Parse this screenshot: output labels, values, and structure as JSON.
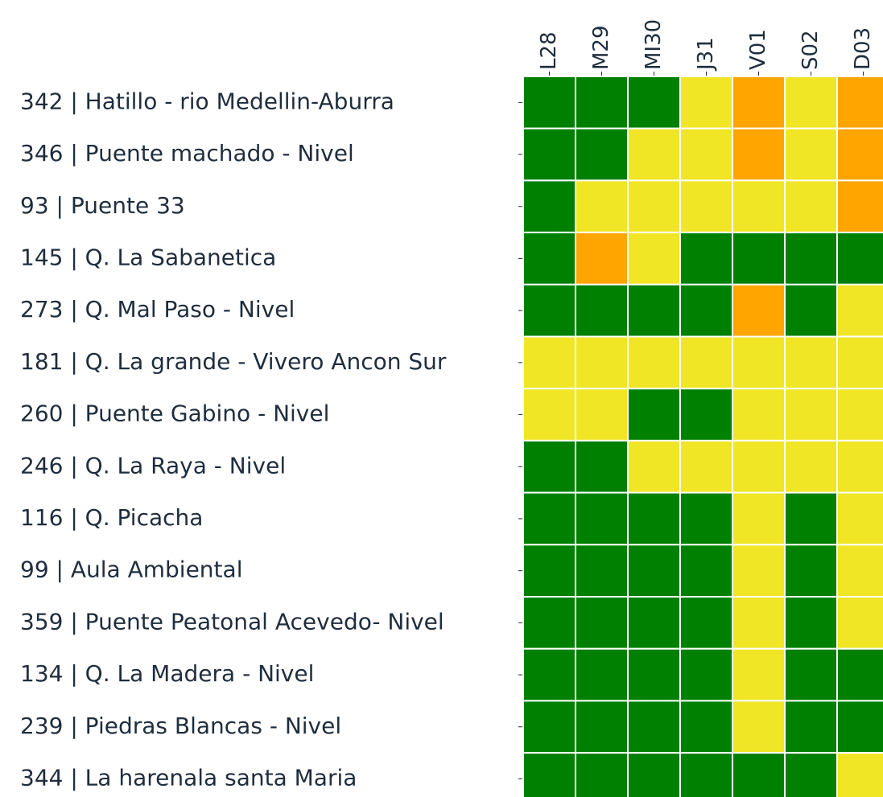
{
  "chart_data": {
    "type": "heatmap",
    "columns": [
      "L28",
      "M29",
      "MI30",
      "J31",
      "V01",
      "S02",
      "D03"
    ],
    "rows": [
      "342 | Hatillo - rio Medellin-Aburra",
      "346 | Puente machado  - Nivel",
      "93 | Puente 33",
      "145 | Q. La Sabanetica",
      "273 | Q. Mal Paso - Nivel",
      "181 | Q. La grande - Vivero Ancon Sur",
      "260 | Puente Gabino - Nivel",
      "246 | Q. La Raya - Nivel",
      "116 | Q. Picacha",
      "99 | Aula Ambiental",
      "359 | Puente Peatonal Acevedo- Nivel",
      "134 | Q. La Madera - Nivel",
      "239 | Piedras Blancas - Nivel",
      "344 | La harenala santa Maria"
    ],
    "cells": [
      [
        "#008000",
        "#008000",
        "#008000",
        "#f0e626",
        "#ffa500",
        "#f0e626",
        "#ffa500"
      ],
      [
        "#008000",
        "#008000",
        "#f0e626",
        "#f0e626",
        "#ffa500",
        "#f0e626",
        "#ffa500"
      ],
      [
        "#008000",
        "#f0e626",
        "#f0e626",
        "#f0e626",
        "#f0e626",
        "#f0e626",
        "#ffa500"
      ],
      [
        "#008000",
        "#ffa500",
        "#f0e626",
        "#008000",
        "#008000",
        "#008000",
        "#008000"
      ],
      [
        "#008000",
        "#008000",
        "#008000",
        "#008000",
        "#ffa500",
        "#008000",
        "#f0e626"
      ],
      [
        "#f0e626",
        "#f0e626",
        "#f0e626",
        "#f0e626",
        "#f0e626",
        "#f0e626",
        "#f0e626"
      ],
      [
        "#f0e626",
        "#f0e626",
        "#008000",
        "#008000",
        "#f0e626",
        "#f0e626",
        "#f0e626"
      ],
      [
        "#008000",
        "#008000",
        "#f0e626",
        "#f0e626",
        "#f0e626",
        "#f0e626",
        "#f0e626"
      ],
      [
        "#008000",
        "#008000",
        "#008000",
        "#008000",
        "#f0e626",
        "#008000",
        "#f0e626"
      ],
      [
        "#008000",
        "#008000",
        "#008000",
        "#008000",
        "#f0e626",
        "#008000",
        "#f0e626"
      ],
      [
        "#008000",
        "#008000",
        "#008000",
        "#008000",
        "#f0e626",
        "#008000",
        "#f0e626"
      ],
      [
        "#008000",
        "#008000",
        "#008000",
        "#008000",
        "#f0e626",
        "#008000",
        "#008000"
      ],
      [
        "#008000",
        "#008000",
        "#008000",
        "#008000",
        "#f0e626",
        "#008000",
        "#008000"
      ],
      [
        "#008000",
        "#008000",
        "#008000",
        "#008000",
        "#008000",
        "#008000",
        "#f0e626"
      ]
    ]
  }
}
